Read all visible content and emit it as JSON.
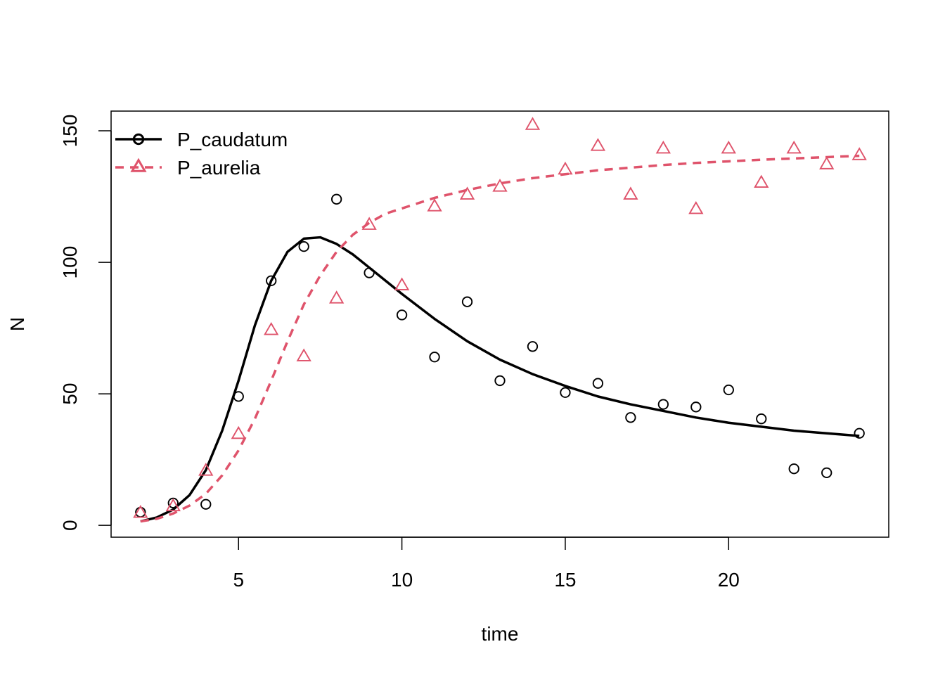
{
  "chart_data": {
    "type": "scatter",
    "xlabel": "time",
    "ylabel": "N",
    "xlim": [
      1.1,
      24.9
    ],
    "ylim": [
      -4.5,
      157.5
    ],
    "x_ticks": [
      5,
      10,
      15,
      20
    ],
    "y_ticks": [
      0,
      50,
      100,
      150
    ],
    "grid": false,
    "legend": {
      "placement": "top-left"
    },
    "series": [
      {
        "name": "P_caudatum",
        "color": "#000000",
        "marker": "circle",
        "points": {
          "x": [
            2,
            3,
            4,
            5,
            6,
            7,
            8,
            9,
            10,
            11,
            12,
            13,
            14,
            15,
            16,
            17,
            18,
            19,
            20,
            21,
            22,
            23,
            24
          ],
          "y": [
            5,
            8.5,
            8,
            49,
            93,
            106,
            124,
            96,
            80,
            64,
            85,
            55,
            68,
            50.5,
            54,
            41,
            46,
            45,
            51.5,
            40.5,
            21.5,
            20,
            35
          ]
        },
        "fit": {
          "style": "solid",
          "x": [
            2,
            2.5,
            3,
            3.5,
            4,
            4.5,
            5,
            5.5,
            6,
            6.5,
            7,
            7.5,
            8,
            8.5,
            9,
            9.5,
            10,
            11,
            12,
            13,
            14,
            15,
            16,
            17,
            18,
            19,
            20,
            21,
            22,
            23,
            24
          ],
          "y": [
            1.5,
            3,
            6,
            11.5,
            21,
            36,
            55,
            76,
            93,
            104,
            109,
            109.5,
            107,
            103,
            98,
            93,
            88,
            78.5,
            70,
            63,
            57.5,
            53,
            49,
            46,
            43.5,
            41,
            39,
            37.5,
            36,
            35,
            34
          ]
        }
      },
      {
        "name": "P_aurelia",
        "color": "#DF536B",
        "marker": "triangle",
        "points": {
          "x": [
            2,
            3,
            4,
            5,
            6,
            7,
            8,
            9,
            10,
            11,
            12,
            13,
            14,
            15,
            16,
            17,
            18,
            19,
            20,
            21,
            22,
            23,
            24
          ],
          "y": [
            4.5,
            7,
            20.5,
            34.5,
            74,
            64,
            86,
            114,
            91,
            121,
            125.5,
            128.5,
            152,
            135,
            144,
            125.5,
            143,
            120,
            143,
            130,
            143,
            137,
            140.5
          ]
        },
        "fit": {
          "style": "dashed",
          "x": [
            2,
            2.5,
            3,
            3.5,
            4,
            4.5,
            5,
            5.5,
            6,
            6.5,
            7,
            7.5,
            8,
            8.5,
            9,
            9.5,
            10,
            11,
            12,
            13,
            14,
            15,
            16,
            17,
            18,
            19,
            20,
            21,
            22,
            23,
            24
          ],
          "y": [
            1.5,
            2.5,
            4.5,
            7.5,
            12,
            19,
            28.5,
            40.5,
            55,
            70,
            84,
            95,
            104,
            110.5,
            115,
            118.5,
            120.5,
            124.5,
            127.5,
            130,
            132,
            133.5,
            135,
            136,
            137,
            137.8,
            138.4,
            139,
            139.5,
            140,
            140.5
          ]
        }
      }
    ]
  }
}
